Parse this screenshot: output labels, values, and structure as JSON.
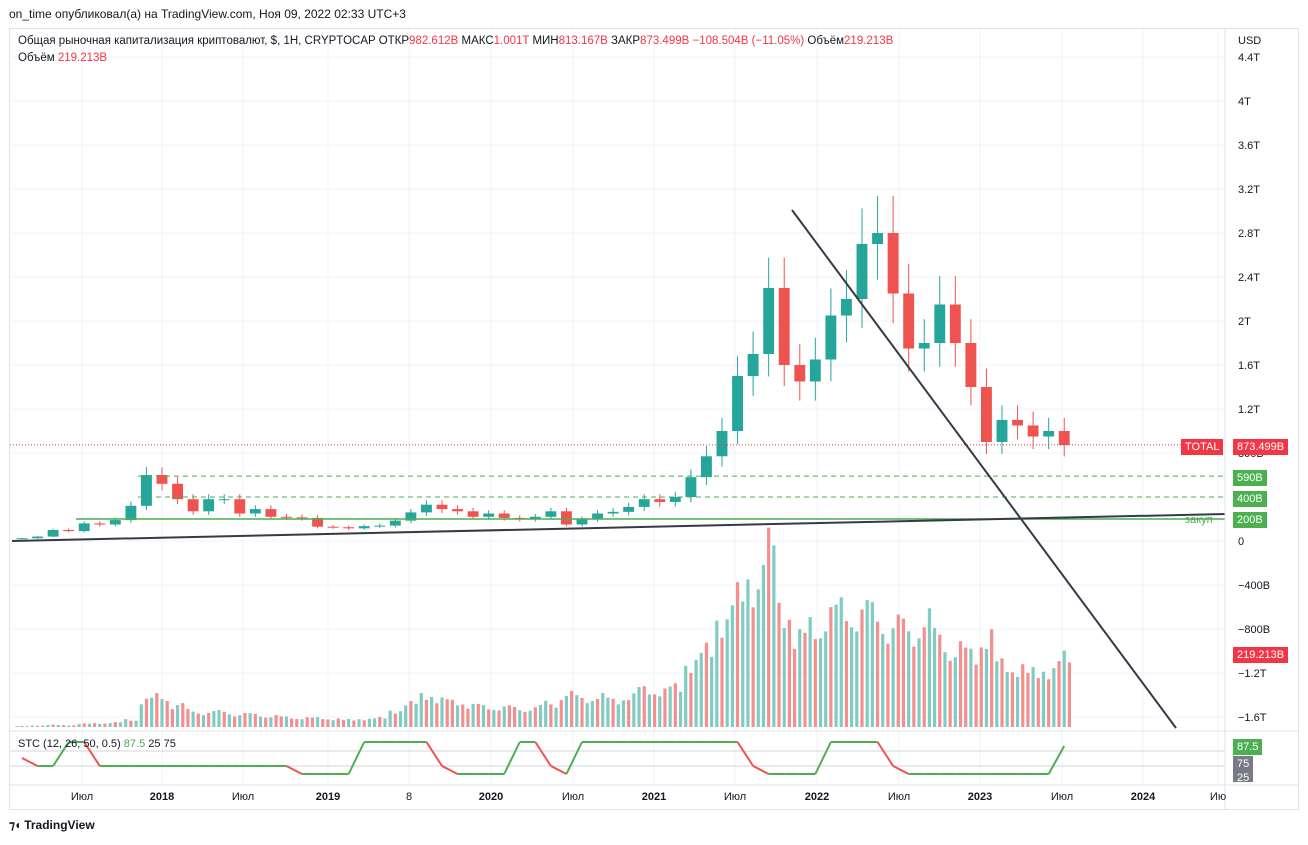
{
  "header": {
    "publisher": "on_time опубликовал(а) на TradingView.com, Ноя 09, 2022 02:33 UTC+3"
  },
  "legend": {
    "symbol": "Общая рыночная капитализация криптовалют, $, 1H, CRYPTOCAP",
    "open_label": "ОТКР",
    "open": "982.612B",
    "high_label": "МАКС",
    "high": "1.001T",
    "low_label": "МИН",
    "low": "813.167B",
    "close_label": "ЗАКР",
    "close": "873.499B",
    "change": "−108.504B (−11.05%)",
    "vol_label": "Объём",
    "vol": "219.213B"
  },
  "legend2": {
    "vol_label": "Объём",
    "vol": "219.213B"
  },
  "stc_legend": {
    "label": "STC (12, 26, 50, 0.5)",
    "value": "87.5",
    "l1": "25",
    "l2": "75"
  },
  "price_axis": {
    "currency": "USD",
    "ticks": [
      "4.4T",
      "4T",
      "3.6T",
      "3.2T",
      "2.8T",
      "2.4T",
      "2T",
      "1.6T",
      "1.2T",
      "800B",
      "0",
      "−400B",
      "−800B",
      "−1.2T",
      "−1.6T"
    ]
  },
  "time_axis": {
    "ticks": [
      "Июл",
      "2018",
      "Июл",
      "2019",
      "8",
      "2020",
      "Июл",
      "2021",
      "Июл",
      "2022",
      "Июл",
      "2023",
      "Июл",
      "2024",
      "Ию"
    ]
  },
  "labels": {
    "total_name": "TOTAL",
    "total_value": "873.499B",
    "lvl590": "590B",
    "lvl400": "400B",
    "lvl200": "200B",
    "zakup": "закуп",
    "vol_tag": "219.213B",
    "stc_875": "87.5",
    "stc_75": "75",
    "stc_25": "25"
  },
  "colors": {
    "up": "#26a69a",
    "down": "#ef5350",
    "green_line": "#4caf50",
    "trend": "#363a45",
    "vol_up": "#80cbc4",
    "vol_down": "#f48f8d"
  },
  "chart_data": {
    "type": "candlestick",
    "title": "Общая рыночная капитализация криптовалют, $, 1H, CRYPTOCAP",
    "x": [
      "2017-04",
      "2017-05",
      "2017-06",
      "2017-07",
      "2017-08",
      "2017-09",
      "2017-10",
      "2017-11",
      "2017-12",
      "2018-01",
      "2018-02",
      "2018-03",
      "2018-04",
      "2018-05",
      "2018-06",
      "2018-07",
      "2018-08",
      "2018-09",
      "2018-10",
      "2018-11",
      "2018-12",
      "2019-01",
      "2019-02",
      "2019-03",
      "2019-04",
      "2019-05",
      "2019-06",
      "2019-07",
      "2019-08",
      "2019-09",
      "2019-10",
      "2019-11",
      "2019-12",
      "2020-01",
      "2020-02",
      "2020-03",
      "2020-04",
      "2020-05",
      "2020-06",
      "2020-07",
      "2020-08",
      "2020-09",
      "2020-10",
      "2020-11",
      "2020-12",
      "2021-01",
      "2021-02",
      "2021-03",
      "2021-04",
      "2021-05",
      "2021-06",
      "2021-07",
      "2021-08",
      "2021-09",
      "2021-10",
      "2021-11",
      "2021-12",
      "2022-01",
      "2022-02",
      "2022-03",
      "2022-04",
      "2022-05",
      "2022-06",
      "2022-07",
      "2022-08",
      "2022-09",
      "2022-10",
      "2022-11"
    ],
    "close_billion": [
      25,
      40,
      100,
      90,
      160,
      150,
      190,
      320,
      600,
      520,
      380,
      270,
      380,
      380,
      250,
      290,
      220,
      215,
      210,
      130,
      125,
      115,
      135,
      140,
      185,
      260,
      330,
      290,
      270,
      220,
      250,
      210,
      200,
      220,
      270,
      150,
      200,
      250,
      265,
      310,
      380,
      355,
      400,
      580,
      770,
      1000,
      1500,
      1700,
      2300,
      1600,
      1450,
      1650,
      2050,
      2200,
      2700,
      2800,
      2250,
      1750,
      1800,
      2150,
      1800,
      1400,
      900,
      1100,
      1050,
      950,
      1000,
      873
    ],
    "volume_billion": [
      5,
      8,
      12,
      10,
      18,
      20,
      25,
      40,
      150,
      170,
      120,
      90,
      80,
      85,
      70,
      70,
      60,
      55,
      50,
      50,
      45,
      40,
      45,
      50,
      90,
      130,
      180,
      150,
      140,
      120,
      110,
      110,
      100,
      110,
      130,
      180,
      160,
      170,
      150,
      170,
      210,
      200,
      220,
      360,
      420,
      600,
      720,
      800,
      1000,
      650,
      500,
      560,
      630,
      650,
      640,
      620,
      560,
      540,
      590,
      500,
      430,
      410,
      500,
      350,
      330,
      300,
      320,
      380
    ],
    "stc": [
      50,
      25,
      25,
      100,
      100,
      25,
      25,
      25,
      25,
      25,
      25,
      25,
      25,
      25,
      25,
      25,
      25,
      25,
      0,
      0,
      0,
      0,
      100,
      100,
      100,
      100,
      100,
      25,
      0,
      0,
      0,
      0,
      100,
      100,
      25,
      0,
      100,
      100,
      100,
      100,
      100,
      100,
      100,
      100,
      100,
      100,
      100,
      25,
      0,
      0,
      0,
      0,
      100,
      100,
      100,
      100,
      25,
      0,
      0,
      0,
      0,
      0,
      0,
      0,
      0,
      0,
      0,
      87.5
    ],
    "levels_billion": [
      590,
      400,
      200
    ],
    "last_close": "873.499B",
    "ylim_billion": [
      -1600,
      4400
    ]
  }
}
